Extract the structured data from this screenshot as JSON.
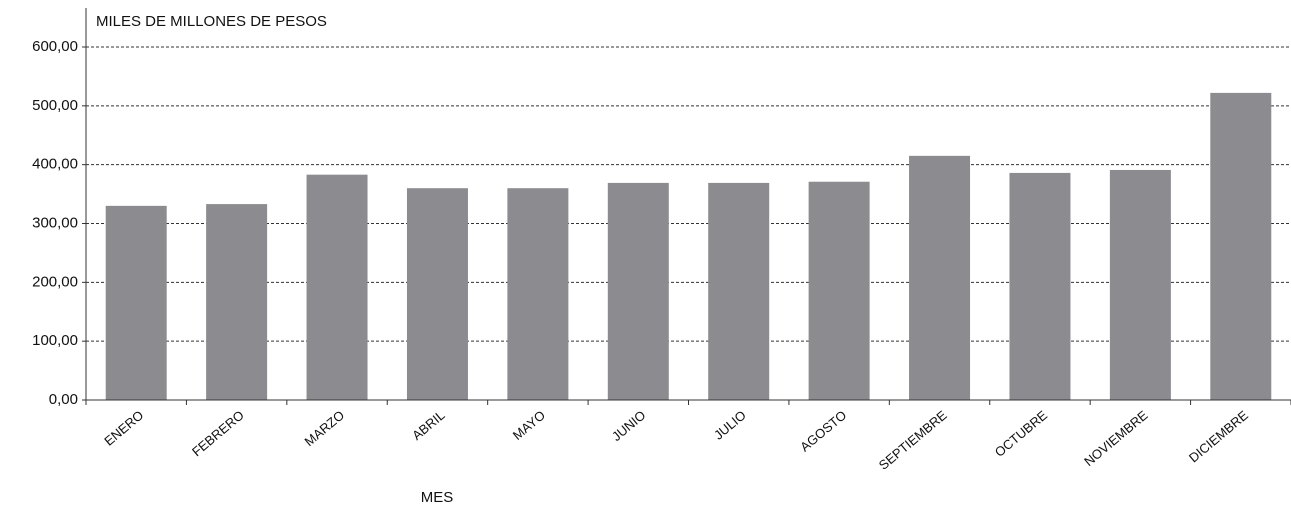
{
  "chart_data": {
    "type": "bar",
    "title": "MILES DE MILLONES DE PESOS",
    "x_label": "MES",
    "categories": [
      "ENERO",
      "FEBRERO",
      "MARZO",
      "ABRIL",
      "MAYO",
      "JUNIO",
      "JULIO",
      "AGOSTO",
      "SEPTIEMBRE",
      "OCTUBRE",
      "NOVIEMBRE",
      "DICIEMBRE"
    ],
    "values": [
      330,
      333,
      383,
      360,
      360,
      369,
      369,
      371,
      415,
      386,
      391,
      522
    ],
    "color": "#8c8c90",
    "ylim": [
      0,
      600
    ],
    "yticks": [
      {
        "value": 0,
        "label": "0,00"
      },
      {
        "value": 100,
        "label": "100,00"
      },
      {
        "value": 200,
        "label": "200,00"
      },
      {
        "value": 300,
        "label": "300,00"
      },
      {
        "value": 400,
        "label": "400,00"
      },
      {
        "value": 500,
        "label": "500,00"
      },
      {
        "value": 600,
        "label": "600,00"
      }
    ],
    "grid": true
  }
}
